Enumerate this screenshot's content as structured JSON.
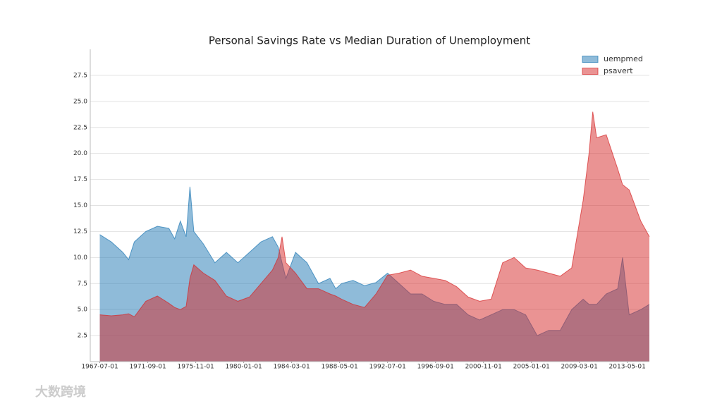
{
  "chart_data": {
    "type": "area",
    "title": "Personal Savings Rate vs Median Duration of Unemployment",
    "x": [
      "1967-07-01",
      "1968-07-01",
      "1969-07-01",
      "1970-01-01",
      "1970-07-01",
      "1971-07-01",
      "1972-07-01",
      "1973-07-01",
      "1974-01-01",
      "1974-07-01",
      "1975-01-01",
      "1975-05-01",
      "1975-09-01",
      "1976-07-01",
      "1977-07-01",
      "1978-07-01",
      "1979-07-01",
      "1980-07-01",
      "1981-07-01",
      "1982-07-01",
      "1983-01-01",
      "1983-05-01",
      "1983-09-01",
      "1984-07-01",
      "1985-07-01",
      "1986-07-01",
      "1987-07-01",
      "1988-01-01",
      "1988-07-01",
      "1989-07-01",
      "1990-07-01",
      "1991-07-01",
      "1992-07-01",
      "1993-07-01",
      "1994-07-01",
      "1995-07-01",
      "1996-07-01",
      "1997-07-01",
      "1998-07-01",
      "1999-07-01",
      "2000-07-01",
      "2001-07-01",
      "2002-07-01",
      "2003-07-01",
      "2004-07-01",
      "2005-07-01",
      "2006-07-01",
      "2007-07-01",
      "2008-07-01",
      "2009-07-01",
      "2010-01-01",
      "2010-05-01",
      "2010-09-01",
      "2011-07-01",
      "2012-07-01",
      "2012-12-01",
      "2013-07-01",
      "2014-07-01",
      "2015-04-01"
    ],
    "series": [
      {
        "name": "uempmed",
        "color": "#1f77b4",
        "values": [
          12.2,
          11.5,
          10.5,
          9.8,
          11.5,
          12.5,
          13.0,
          12.8,
          11.8,
          13.5,
          12.0,
          16.8,
          12.5,
          11.3,
          9.5,
          10.5,
          9.5,
          10.5,
          11.5,
          12.0,
          11.0,
          9.5,
          8.0,
          10.5,
          9.5,
          7.5,
          8.0,
          7.0,
          7.5,
          7.8,
          7.3,
          7.6,
          8.5,
          7.5,
          6.5,
          6.5,
          5.8,
          5.5,
          5.5,
          4.5,
          4.0,
          4.5,
          5.0,
          5.0,
          4.5,
          2.5,
          3.0,
          3.0,
          5.0,
          6.0,
          5.5,
          5.5,
          5.5,
          6.5,
          7.0,
          10.0,
          4.5,
          5.0,
          5.5
        ]
      },
      {
        "name": "psavert",
        "color": "#d62728",
        "values": [
          4.5,
          4.4,
          4.5,
          4.6,
          4.3,
          5.8,
          6.3,
          5.6,
          5.2,
          5.0,
          5.3,
          8.0,
          9.3,
          8.5,
          7.8,
          6.3,
          5.8,
          6.2,
          7.5,
          8.8,
          10.0,
          12.0,
          9.5,
          8.5,
          7.0,
          7.0,
          6.5,
          6.3,
          6.0,
          5.5,
          5.2,
          6.5,
          8.3,
          8.5,
          8.8,
          8.2,
          8.0,
          7.8,
          7.2,
          6.2,
          5.8,
          6.0,
          9.5,
          10.0,
          9.0,
          8.8,
          8.5,
          8.2,
          9.0,
          15.5,
          20.0,
          24.0,
          21.5,
          21.8,
          18.5,
          17.0,
          16.5,
          13.5,
          12.0
        ]
      }
    ],
    "xlim": [
      "1966-09-01",
      "2015-04-01"
    ],
    "xticks": [
      "1967-07-01",
      "1971-09-01",
      "1975-11-01",
      "1980-01-01",
      "1984-03-01",
      "1988-05-01",
      "1992-07-01",
      "1996-09-01",
      "2000-11-01",
      "2005-01-01",
      "2009-03-01",
      "2013-05-01"
    ],
    "ylim": [
      0,
      30
    ],
    "yticks": [
      2.5,
      {
        "value": 5,
        "label": "5.0"
      },
      7.5,
      {
        "value": 10,
        "label": "10.0"
      },
      12.5,
      {
        "value": 15,
        "label": "15.0"
      },
      17.5,
      {
        "value": 20,
        "label": "20.0"
      },
      22.5,
      {
        "value": 25,
        "label": "25.0"
      },
      27.5
    ],
    "grid": true,
    "legend": "upper right",
    "watermark": "大数跨境"
  }
}
